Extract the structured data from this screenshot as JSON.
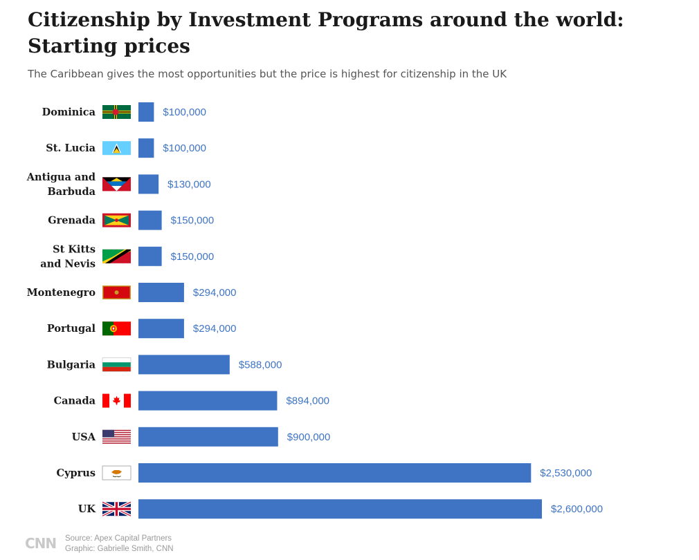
{
  "chart_data": {
    "type": "bar",
    "orientation": "horizontal",
    "title": "Citizenship by Investment Programs around the world: Starting prices",
    "subtitle": "The Caribbean gives the most opportunities but the price is highest for citizenship in the UK",
    "category_labels": [
      [
        "Dominica"
      ],
      [
        "St. Lucia"
      ],
      [
        "Antigua and",
        "Barbuda"
      ],
      [
        "Grenada"
      ],
      [
        "St Kitts",
        "and Nevis"
      ],
      [
        "Montenegro"
      ],
      [
        "Portugal"
      ],
      [
        "Bulgaria"
      ],
      [
        "Canada"
      ],
      [
        "USA"
      ],
      [
        "Cyprus"
      ],
      [
        "UK"
      ]
    ],
    "flags": [
      "dominica-flag-icon",
      "st-lucia-flag-icon",
      "antigua-and-barbuda-flag-icon",
      "grenada-flag-icon",
      "st-kitts-and-nevis-flag-icon",
      "montenegro-flag-icon",
      "portugal-flag-icon",
      "bulgaria-flag-icon",
      "canada-flag-icon",
      "usa-flag-icon",
      "cyprus-flag-icon",
      "uk-flag-icon"
    ],
    "values": [
      100000,
      100000,
      130000,
      150000,
      150000,
      294000,
      294000,
      588000,
      894000,
      900000,
      2530000,
      2600000
    ],
    "value_labels": [
      "$100,000",
      "$100,000",
      "$130,000",
      "$150,000",
      "$150,000",
      "$294,000",
      "$294,000",
      "$588,000",
      "$894,000",
      "$900,000",
      "$2,530,000",
      "$2,600,000"
    ],
    "bar_color": "#3f74c5",
    "label_color": "#3f74c5"
  },
  "footer": {
    "logo": "CNN",
    "source": "Source: Apex Capital Partners",
    "graphic": "Graphic: Gabrielle Smith, CNN"
  }
}
